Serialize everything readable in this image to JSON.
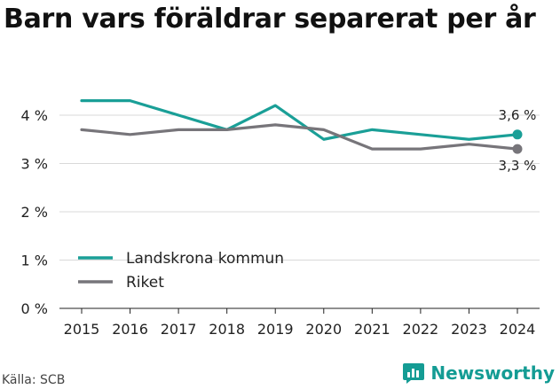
{
  "header": {
    "title": "Barn vars föräldrar separerat per år"
  },
  "footer": {
    "source": "Källa: SCB",
    "brand": "Newsworthy"
  },
  "colors": {
    "landskrona": "#1a9f97",
    "riket": "#77757a",
    "grid": "#d9d9d9"
  },
  "chart_data": {
    "type": "line",
    "title": "Barn vars föräldrar separerat per år",
    "xlabel": "",
    "ylabel": "",
    "x": [
      2015,
      2016,
      2017,
      2018,
      2019,
      2020,
      2021,
      2022,
      2023,
      2024
    ],
    "ylim": [
      0,
      4.5
    ],
    "yticks": [
      0,
      1,
      2,
      3,
      4
    ],
    "ytick_labels": [
      "0 %",
      "1 %",
      "2 %",
      "3 %",
      "4 %"
    ],
    "grid": true,
    "legend": "bottom-left",
    "series": [
      {
        "name": "Landskrona kommun",
        "values": [
          4.3,
          4.3,
          4.0,
          3.7,
          4.2,
          3.5,
          3.7,
          3.6,
          3.5,
          3.6
        ],
        "end_label": "3,6 %"
      },
      {
        "name": "Riket",
        "values": [
          3.7,
          3.6,
          3.7,
          3.7,
          3.8,
          3.7,
          3.3,
          3.3,
          3.4,
          3.3
        ],
        "end_label": "3,3 %"
      }
    ]
  }
}
